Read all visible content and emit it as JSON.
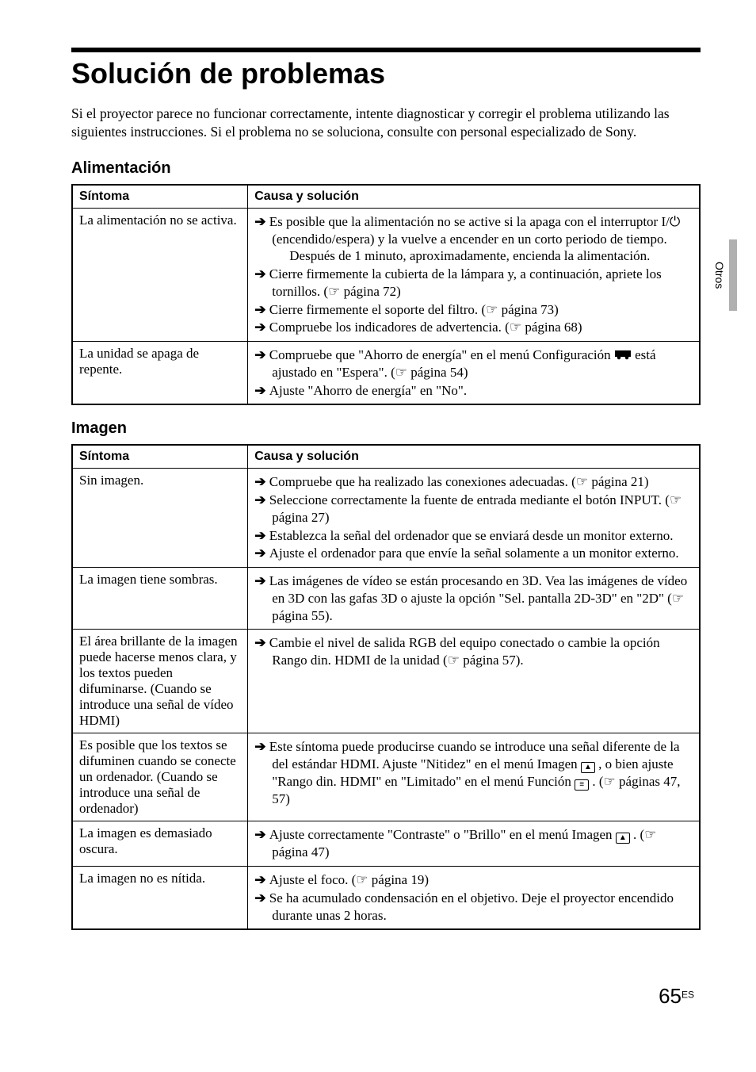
{
  "page": {
    "title": "Solución de problemas",
    "intro": "Si el proyector parece no funcionar correctamente, intente diagnosticar y corregir el problema utilizando las siguientes instrucciones. Si el problema no se soluciona, consulte con personal especializado de Sony.",
    "side_tab": "Otros",
    "page_number": "65",
    "page_suffix": "ES"
  },
  "headers": {
    "symptom": "Síntoma",
    "cause": "Causa y solución"
  },
  "sections": [
    {
      "heading": "Alimentación",
      "rows": [
        {
          "symptom": "La alimentación no se activa.",
          "items": [
            {
              "text_parts": [
                "Es posible que la alimentación no se active si la apaga con el interruptor ",
                "I/⏻",
                " (encendido/espera) y la vuelve a encender en un corto periodo de tiempo."
              ],
              "cont": "Después de 1 minuto, aproximadamente, encienda la alimentación."
            },
            {
              "text_parts": [
                "Cierre firmemente la cubierta de la lámpara y, a continuación, apriete los tornillos. (",
                "☞",
                " página 72)"
              ]
            },
            {
              "text_parts": [
                "Cierre firmemente el soporte del filtro. (",
                "☞",
                " página 73)"
              ]
            },
            {
              "text_parts": [
                "Compruebe los indicadores de advertencia. (",
                "☞",
                " página 68)"
              ]
            }
          ]
        },
        {
          "symptom": "La unidad se apaga de repente.",
          "items": [
            {
              "text_parts": [
                "Compruebe que \"Ahorro de energía\" en el menú Configuración ",
                "TOOLICON",
                " está ajustado en \"Espera\". (",
                "☞",
                " página 54)"
              ]
            },
            {
              "text_parts": [
                "Ajuste \"Ahorro de energía\" en \"No\"."
              ]
            }
          ]
        }
      ]
    },
    {
      "heading": "Imagen",
      "rows": [
        {
          "symptom": "Sin imagen.",
          "items": [
            {
              "text_parts": [
                "Compruebe que ha realizado las conexiones adecuadas. (",
                "☞",
                " página 21)"
              ]
            },
            {
              "text_parts": [
                "Seleccione correctamente la fuente de entrada mediante el botón INPUT. (",
                "☞",
                " página 27)"
              ]
            },
            {
              "text_parts": [
                "Establezca la señal del ordenador que se enviará desde un monitor externo."
              ]
            },
            {
              "text_parts": [
                "Ajuste el ordenador para que envíe la señal solamente a un monitor externo."
              ]
            }
          ]
        },
        {
          "symptom": "La imagen tiene sombras.",
          "items": [
            {
              "text_parts": [
                "Las imágenes de vídeo se están procesando en 3D. Vea las imágenes de vídeo en 3D con las gafas 3D o ajuste la opción \"Sel. pantalla 2D-3D\" en \"2D\" (",
                "☞",
                " página 55)."
              ]
            }
          ]
        },
        {
          "symptom": "El área brillante de la imagen puede hacerse menos clara, y los textos pueden difuminarse. (Cuando se introduce una señal de vídeo HDMI)",
          "items": [
            {
              "text_parts": [
                "Cambie el nivel de salida RGB del equipo conectado o cambie la opción Rango din. HDMI de la unidad (",
                "☞",
                " página 57)."
              ]
            }
          ]
        },
        {
          "symptom": "Es posible que los textos se difuminen cuando se conecte un ordenador. (Cuando se introduce una señal de ordenador)",
          "items": [
            {
              "text_parts": [
                "Este síntoma puede producirse cuando se introduce una señal diferente de la del estándar HDMI. Ajuste \"Nitidez\" en el menú Imagen ",
                "IMGICON",
                " , o bien ajuste \"Rango din. HDMI\" en \"Limitado\" en el menú Función ",
                "FUNCICON",
                " . (",
                "☞",
                " páginas 47, 57)"
              ]
            }
          ]
        },
        {
          "symptom": "La imagen es demasiado oscura.",
          "items": [
            {
              "text_parts": [
                "Ajuste correctamente \"Contraste\" o \"Brillo\" en el menú Imagen ",
                "IMGICON",
                " . (",
                "☞",
                " página 47)"
              ]
            }
          ]
        },
        {
          "symptom": "La imagen no es nítida.",
          "items": [
            {
              "text_parts": [
                "Ajuste el foco. (",
                "☞",
                " página 19)"
              ]
            },
            {
              "text_parts": [
                "Se ha acumulado condensación en el objetivo. Deje el proyector encendido durante unas 2 horas."
              ]
            }
          ]
        }
      ]
    }
  ]
}
